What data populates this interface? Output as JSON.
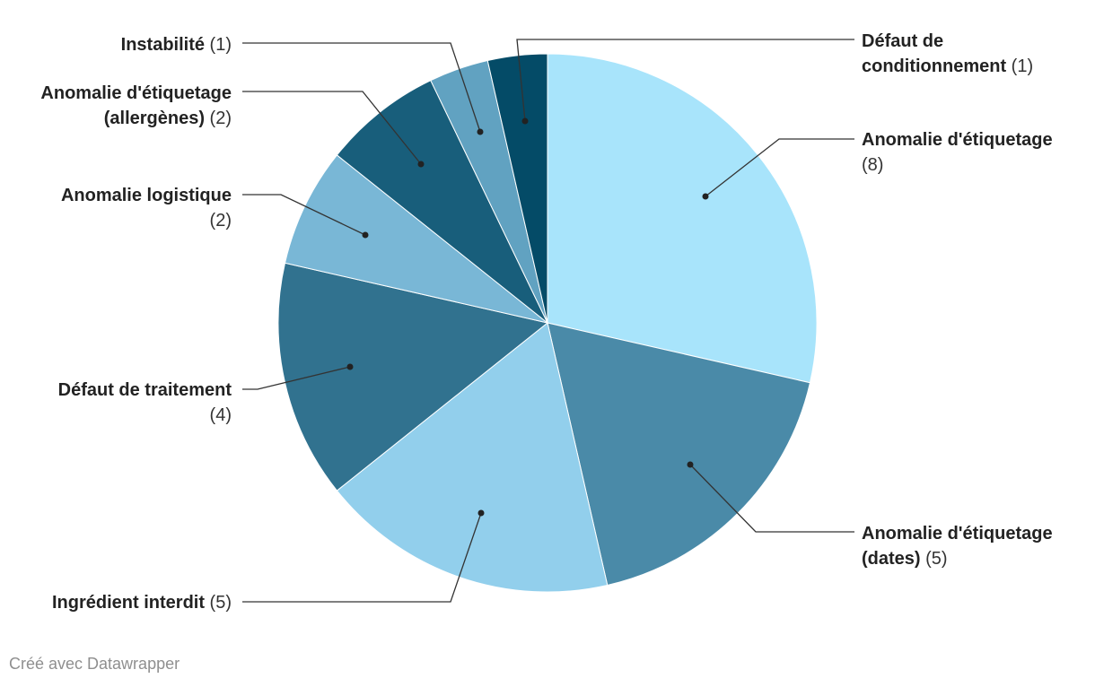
{
  "chart_data": {
    "type": "pie",
    "start_angle_deg": 0,
    "direction": "clockwise",
    "slices": [
      {
        "label_lines": [
          "Anomalie d'étiquetage"
        ],
        "count_text": "(8)",
        "count_on_new_line": true,
        "value": 8,
        "color": "#a8e4fb"
      },
      {
        "label_lines": [
          "Anomalie d'étiquetage",
          "(dates)"
        ],
        "count_text": "(5)",
        "count_on_new_line": false,
        "value": 5,
        "color": "#4a8aa8"
      },
      {
        "label_lines": [
          "Ingrédient interdit"
        ],
        "count_text": "(5)",
        "count_on_new_line": false,
        "value": 5,
        "color": "#92cfec"
      },
      {
        "label_lines": [
          "Défaut de traitement"
        ],
        "count_text": "(4)",
        "count_on_new_line": true,
        "value": 4,
        "color": "#31728f"
      },
      {
        "label_lines": [
          "Anomalie logistique"
        ],
        "count_text": "(2)",
        "count_on_new_line": true,
        "value": 2,
        "color": "#79b7d6"
      },
      {
        "label_lines": [
          "Anomalie d'étiquetage",
          "(allergènes)"
        ],
        "count_text": "(2)",
        "count_on_new_line": false,
        "value": 2,
        "color": "#185e7b"
      },
      {
        "label_lines": [
          "Instabilité"
        ],
        "count_text": "(1)",
        "count_on_new_line": false,
        "value": 1,
        "color": "#61a2c1"
      },
      {
        "label_lines": [
          "Défaut de",
          "conditionnement"
        ],
        "count_text": "(1)",
        "count_on_new_line": false,
        "value": 1,
        "color": "#044b67"
      }
    ]
  },
  "footer": {
    "credit": "Créé avec Datawrapper"
  }
}
